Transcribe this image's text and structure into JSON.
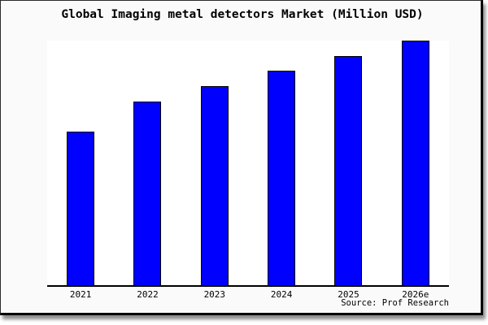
{
  "title": "Global Imaging metal detectors Market (Million USD)",
  "source": "Source: Prof Research",
  "colors": {
    "bar_fill": "#0000ff",
    "bar_border": "#000000",
    "axis": "#000000",
    "canvas_background": "#fafafa",
    "plot_background": "#ffffff",
    "frame_border": "#000000"
  },
  "chart_data": {
    "type": "bar",
    "title": "Global Imaging metal detectors Market (Million USD)",
    "categories": [
      "2021",
      "2022",
      "2023",
      "2024",
      "2025",
      "2026e"
    ],
    "values": [
      62.8,
      75.1,
      81.4,
      87.7,
      93.7,
      100
    ],
    "value_basis": "estimated percent of tallest bar (2026e = 100); y-axis unlabeled in chart",
    "series_name": "Global Imaging metal detectors Market",
    "xlabel": "",
    "ylabel": "",
    "ylim": [
      0,
      100
    ],
    "grid": "off",
    "legend": "none",
    "bar_color": "#0000ff"
  }
}
